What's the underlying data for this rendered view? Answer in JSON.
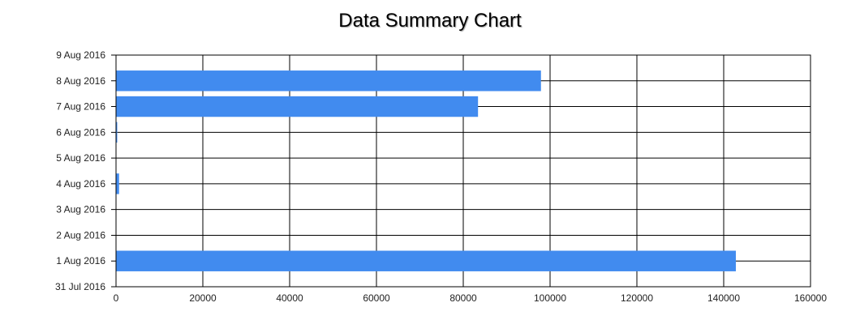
{
  "chart_data": {
    "type": "bar",
    "orientation": "horizontal",
    "title": "Data Summary Chart",
    "y_axis_type": "date",
    "y_tick_labels": [
      "31 Jul 2016",
      "1 Aug 2016",
      "2 Aug 2016",
      "3 Aug 2016",
      "4 Aug 2016",
      "5 Aug 2016",
      "6 Aug 2016",
      "7 Aug 2016",
      "8 Aug 2016",
      "9 Aug 2016"
    ],
    "x_tick_labels": [
      "0",
      "20000",
      "40000",
      "60000",
      "80000",
      "100000",
      "120000",
      "140000",
      "160000"
    ],
    "xlim": [
      0,
      160000
    ],
    "grid": true,
    "bar_color": "#418BEF",
    "points": [
      {
        "date": "1 Aug 2016",
        "value": 142800
      },
      {
        "date": "4 Aug 2016",
        "value": 700
      },
      {
        "date": "6 Aug 2016",
        "value": 200
      },
      {
        "date": "7 Aug 2016",
        "value": 83400
      },
      {
        "date": "8 Aug 2016",
        "value": 97900
      }
    ]
  }
}
